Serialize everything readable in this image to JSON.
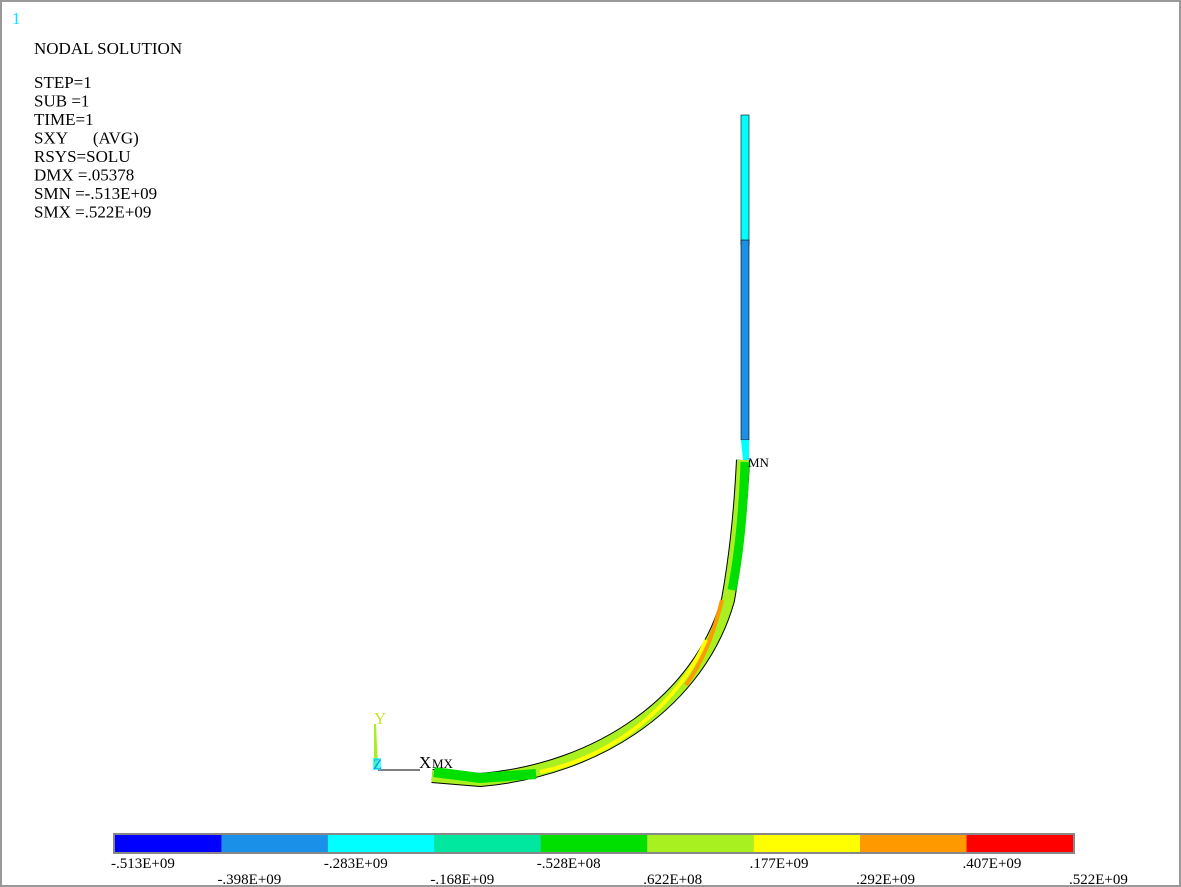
{
  "window_number": "1",
  "header": {
    "title": "NODAL SOLUTION",
    "lines": [
      "STEP=1",
      "SUB =1",
      "TIME=1",
      "SXY      (AVG)",
      "RSYS=SOLU",
      "DMX =.05378",
      "SMN =-.513E+09",
      "SMX =.522E+09"
    ]
  },
  "triad": {
    "x": "X",
    "y": "Y",
    "z": "Z"
  },
  "markers": {
    "min": "MN",
    "max": "MX"
  },
  "legend": {
    "colors": [
      "#0000ff",
      "#1a90e8",
      "#00ffff",
      "#00e8a0",
      "#00e000",
      "#a8f020",
      "#ffff00",
      "#ff9900",
      "#ff0000"
    ],
    "labels": [
      "-.513E+09",
      "-.398E+09",
      "-.283E+09",
      "-.168E+09",
      "-.528E+08",
      ".622E+08",
      ".177E+09",
      ".292E+09",
      ".407E+09",
      ".522E+09"
    ]
  }
}
